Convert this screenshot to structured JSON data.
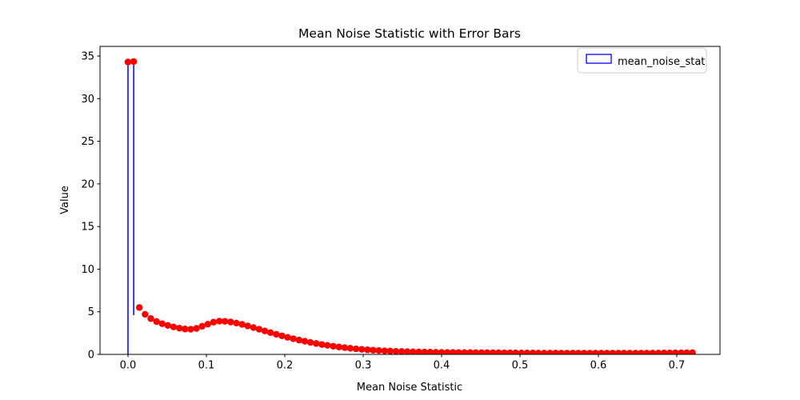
{
  "chart_data": {
    "type": "scatter",
    "subtype": "errorbar",
    "title": "Mean Noise Statistic with Error Bars",
    "xlabel": "Mean Noise Statistic",
    "ylabel": "Value",
    "legend": {
      "label": "mean_noise_stat",
      "position": "upper right"
    },
    "grid": false,
    "xlim": [
      -0.0357,
      0.7551
    ],
    "ylim": [
      0,
      36.13
    ],
    "xticks": [
      {
        "value": 0.0,
        "label": "0.0"
      },
      {
        "value": 0.1,
        "label": "0.1"
      },
      {
        "value": 0.2,
        "label": "0.2"
      },
      {
        "value": 0.3,
        "label": "0.3"
      },
      {
        "value": 0.4,
        "label": "0.4"
      },
      {
        "value": 0.5,
        "label": "0.5"
      },
      {
        "value": 0.6,
        "label": "0.6"
      },
      {
        "value": 0.7,
        "label": "0.7"
      }
    ],
    "yticks": [
      {
        "value": 0,
        "label": "0"
      },
      {
        "value": 5,
        "label": "5"
      },
      {
        "value": 10,
        "label": "10"
      },
      {
        "value": 15,
        "label": "15"
      },
      {
        "value": 20,
        "label": "20"
      },
      {
        "value": 25,
        "label": "25"
      },
      {
        "value": 30,
        "label": "30"
      },
      {
        "value": 35,
        "label": "35"
      }
    ],
    "colors": {
      "marker": "#ff0000",
      "error_stem": "#0000ff",
      "legend_handle_edge": "#0000ff",
      "legend_border": "#cccccc",
      "axis": "#000000"
    },
    "marker_radius": 4.2,
    "yerr": 0.12,
    "error_stems": [
      {
        "x": 0.0,
        "y0": 0.0,
        "y1": 34.3
      },
      {
        "x": 0.0073,
        "y0": 4.6,
        "y1": 34.35
      }
    ],
    "x": [
      0.0,
      0.0073,
      0.0145,
      0.0218,
      0.0291,
      0.0364,
      0.0436,
      0.0509,
      0.0582,
      0.0655,
      0.0727,
      0.08,
      0.0873,
      0.0945,
      0.1018,
      0.1091,
      0.1164,
      0.1236,
      0.1309,
      0.1382,
      0.1455,
      0.1527,
      0.16,
      0.1673,
      0.1745,
      0.1818,
      0.1891,
      0.1964,
      0.2036,
      0.2109,
      0.2182,
      0.2255,
      0.2327,
      0.24,
      0.2473,
      0.2545,
      0.2618,
      0.2691,
      0.2764,
      0.2836,
      0.2909,
      0.2982,
      0.3055,
      0.3127,
      0.32,
      0.3273,
      0.3345,
      0.3418,
      0.3491,
      0.3564,
      0.3636,
      0.3709,
      0.3782,
      0.3855,
      0.3927,
      0.4,
      0.4073,
      0.4145,
      0.4218,
      0.4291,
      0.4364,
      0.4436,
      0.4509,
      0.4582,
      0.4655,
      0.4727,
      0.48,
      0.4873,
      0.4945,
      0.5018,
      0.5091,
      0.5164,
      0.5236,
      0.5309,
      0.5382,
      0.5455,
      0.5527,
      0.56,
      0.5673,
      0.5745,
      0.5818,
      0.5891,
      0.5964,
      0.6036,
      0.6109,
      0.6182,
      0.6255,
      0.6327,
      0.64,
      0.6473,
      0.6545,
      0.6618,
      0.6691,
      0.6764,
      0.6836,
      0.6909,
      0.6982,
      0.7055,
      0.7127,
      0.72
    ],
    "y": [
      34.3,
      34.35,
      5.5,
      4.7,
      4.2,
      3.85,
      3.6,
      3.4,
      3.22,
      3.08,
      2.98,
      2.95,
      3.05,
      3.3,
      3.55,
      3.78,
      3.9,
      3.88,
      3.8,
      3.68,
      3.52,
      3.34,
      3.15,
      2.95,
      2.75,
      2.55,
      2.36,
      2.18,
      2.0,
      1.84,
      1.68,
      1.54,
      1.4,
      1.28,
      1.16,
      1.06,
      0.96,
      0.87,
      0.79,
      0.72,
      0.65,
      0.59,
      0.54,
      0.49,
      0.45,
      0.42,
      0.39,
      0.36,
      0.34,
      0.32,
      0.3,
      0.29,
      0.27,
      0.26,
      0.25,
      0.24,
      0.23,
      0.23,
      0.22,
      0.21,
      0.21,
      0.2,
      0.2,
      0.2,
      0.19,
      0.19,
      0.18,
      0.18,
      0.18,
      0.17,
      0.17,
      0.17,
      0.16,
      0.16,
      0.16,
      0.16,
      0.15,
      0.15,
      0.15,
      0.15,
      0.15,
      0.15,
      0.15,
      0.15,
      0.15,
      0.15,
      0.15,
      0.15,
      0.15,
      0.15,
      0.15,
      0.15,
      0.16,
      0.16,
      0.17,
      0.17,
      0.18,
      0.18,
      0.19,
      0.2
    ]
  }
}
